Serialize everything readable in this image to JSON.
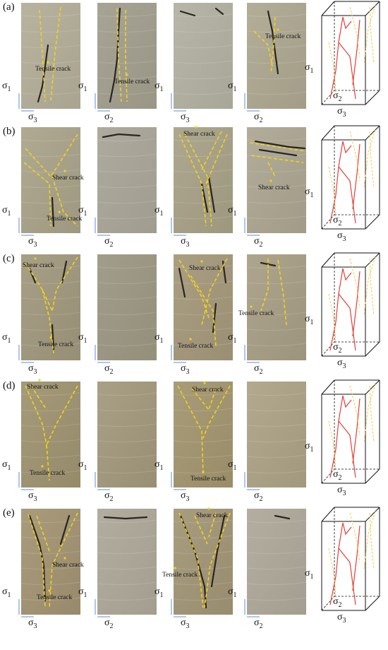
{
  "colors": {
    "crack_trace": "#f2d21c",
    "crack_3d_red": "#e0403a",
    "crack_3d_yellow": "#f2c94c",
    "axis_marker": "#5b8fd6"
  },
  "stress_symbols": {
    "sigma1": "σ",
    "sigma1_sub": "1",
    "sigma2": "σ",
    "sigma2_sub": "2",
    "sigma3": "σ",
    "sigma3_sub": "3"
  },
  "rows": [
    {
      "label": "(a)",
      "panels": [
        {
          "bottom_sub": "3",
          "annotation": "Tensile crack"
        },
        {
          "bottom_sub": "2",
          "annotation": "Tensile crack"
        },
        {
          "bottom_sub": "3",
          "annotation": ""
        },
        {
          "bottom_sub": "2",
          "annotation": "Tensile crack"
        }
      ]
    },
    {
      "label": "(b)",
      "panels": [
        {
          "bottom_sub": "3",
          "annotation": "Shear crack",
          "annotation2": "Tensile crack"
        },
        {
          "bottom_sub": "2",
          "annotation": ""
        },
        {
          "bottom_sub": "3",
          "annotation": "Shear crack"
        },
        {
          "bottom_sub": "2",
          "annotation": "Shear crack"
        }
      ]
    },
    {
      "label": "(c)",
      "panels": [
        {
          "bottom_sub": "3",
          "annotation": "Shear crack",
          "annotation2": "Tensile crack"
        },
        {
          "bottom_sub": "2",
          "annotation": ""
        },
        {
          "bottom_sub": "3",
          "annotation": "Shear crack",
          "annotation2": "Tensile crack"
        },
        {
          "bottom_sub": "2",
          "annotation": "Tensile crack"
        }
      ]
    },
    {
      "label": "(d)",
      "panels": [
        {
          "bottom_sub": "3",
          "annotation": "Shear crack",
          "annotation2": "Tensile crack"
        },
        {
          "bottom_sub": "2",
          "annotation": ""
        },
        {
          "bottom_sub": "3",
          "annotation": "Shear crack",
          "annotation2": "Tensile crack"
        },
        {
          "bottom_sub": "2",
          "annotation": ""
        }
      ]
    },
    {
      "label": "(e)",
      "panels": [
        {
          "bottom_sub": "3",
          "annotation": "Shear crack",
          "annotation2": "Tensile crack"
        },
        {
          "bottom_sub": "2",
          "annotation": ""
        },
        {
          "bottom_sub": "3",
          "annotation": "Shear crack",
          "annotation2": "Tensile crack"
        },
        {
          "bottom_sub": "2",
          "annotation": ""
        }
      ]
    }
  ]
}
